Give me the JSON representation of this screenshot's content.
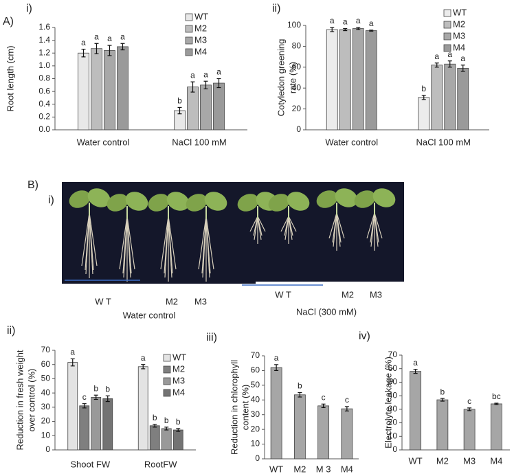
{
  "panel_labels": [
    "A)",
    "i)",
    "ii)",
    "B)",
    "i)",
    "ii)",
    "iii)",
    "iv)"
  ],
  "photos": [
    {
      "labels": [
        "W T",
        "M2",
        "M3"
      ],
      "caption": "Water control"
    },
    {
      "labels": [
        "W T",
        "M2",
        "M3"
      ],
      "caption": "NaCl (300 mM)"
    }
  ],
  "chart_data": [
    {
      "type": "bar",
      "ylabel": [
        "Root length (cm)"
      ],
      "categories": [
        "Water control",
        "NaCl 100 mM"
      ],
      "ylim": [
        0,
        1.6
      ],
      "yticks": [
        {
          "value": 0,
          "label": "0.0"
        },
        0.2,
        0.4,
        0.6,
        0.8,
        {
          "value": 1,
          "label": "1.0"
        },
        1.2,
        1.4,
        1.6
      ],
      "series": [
        {
          "name": "WT",
          "color": "#e8e8e8",
          "values": [
            1.2,
            0.3
          ],
          "errors": [
            0.06,
            0.05
          ],
          "labels": [
            "a",
            "b"
          ]
        },
        {
          "name": "M2",
          "color": "#bdbdbd",
          "values": [
            1.27,
            0.67
          ],
          "errors": [
            0.08,
            0.08
          ],
          "labels": [
            "a",
            "a"
          ]
        },
        {
          "name": "M3",
          "color": "#a8a8a8",
          "values": [
            1.24,
            0.7
          ],
          "errors": [
            0.08,
            0.06
          ],
          "labels": [
            "a",
            "a"
          ]
        },
        {
          "name": "M4",
          "color": "#9a9a9a",
          "values": [
            1.3,
            0.73
          ],
          "errors": [
            0.05,
            0.07
          ],
          "labels": [
            "a",
            "a"
          ]
        }
      ]
    },
    {
      "type": "bar",
      "ylabel": [
        "Cotyledon greening",
        "rate (%)"
      ],
      "categories": [
        "Water control",
        "NaCl 100 mM"
      ],
      "ylim": [
        0,
        100
      ],
      "yticks": [
        0,
        20,
        40,
        60,
        80,
        100
      ],
      "series": [
        {
          "name": "WT",
          "color": "#ececec",
          "values": [
            96,
            31
          ],
          "errors": [
            2,
            2
          ],
          "labels": [
            "a",
            "b"
          ]
        },
        {
          "name": "M2",
          "color": "#bdbdbd",
          "values": [
            96,
            62
          ],
          "errors": [
            1,
            2
          ],
          "labels": [
            "a",
            "a"
          ]
        },
        {
          "name": "M3",
          "color": "#a8a8a8",
          "values": [
            97,
            63
          ],
          "errors": [
            1,
            3
          ],
          "labels": [
            "a",
            "a"
          ]
        },
        {
          "name": "M4",
          "color": "#9a9a9a",
          "values": [
            95,
            59
          ],
          "errors": [
            0.5,
            3
          ],
          "labels": [
            "a",
            "a"
          ]
        }
      ]
    },
    {
      "type": "bar",
      "ylabel": [
        "Reduction in fresh weight",
        "over control (%)"
      ],
      "categories": [
        "Shoot FW",
        "RootFW"
      ],
      "ylim": [
        0,
        70
      ],
      "yticks": [
        0,
        10,
        20,
        30,
        40,
        50,
        60,
        70
      ],
      "series": [
        {
          "name": "WT",
          "color": "#e3e3e3",
          "values": [
            61.5,
            58.5
          ],
          "errors": [
            2.5,
            1.5
          ],
          "labels": [
            "a",
            "a"
          ]
        },
        {
          "name": "M2",
          "color": "#7f7f7f",
          "values": [
            31,
            17
          ],
          "errors": [
            1.5,
            1
          ],
          "labels": [
            "c",
            "b"
          ]
        },
        {
          "name": "M3",
          "color": "#999999",
          "values": [
            37,
            15
          ],
          "errors": [
            1.5,
            1
          ],
          "labels": [
            "b",
            "b"
          ]
        },
        {
          "name": "M4",
          "color": "#737373",
          "values": [
            36,
            14
          ],
          "errors": [
            2,
            1
          ],
          "labels": [
            "b",
            "b"
          ]
        }
      ]
    },
    {
      "type": "bar",
      "ylabel": [
        "Reduction in chlorophyll",
        "content (%)"
      ],
      "categories": [
        "WT",
        "M2",
        "M 3",
        "M4"
      ],
      "ylim": [
        0,
        70
      ],
      "yticks": [
        0,
        10,
        20,
        30,
        40,
        50,
        60,
        70
      ],
      "series": [
        {
          "color": "#a6a6a6",
          "values": [
            62,
            43.5,
            36,
            34
          ],
          "errors": [
            2,
            1.5,
            1.2,
            1.5
          ],
          "labels": [
            "a",
            "b",
            "c",
            "c"
          ]
        }
      ]
    },
    {
      "type": "bar",
      "ylabel": [
        "Electrolyte leakage (%)"
      ],
      "categories": [
        "WT",
        "M2",
        "M3",
        "M4"
      ],
      "ylim": [
        0,
        70
      ],
      "yticks": [
        0,
        10,
        20,
        30,
        40,
        50,
        60,
        70
      ],
      "series": [
        {
          "color": "#a6a6a6",
          "values": [
            58,
            37,
            30,
            34
          ],
          "errors": [
            1.5,
            1,
            1,
            0.5
          ],
          "labels": [
            "a",
            "b",
            "c",
            "bc"
          ]
        }
      ]
    }
  ]
}
